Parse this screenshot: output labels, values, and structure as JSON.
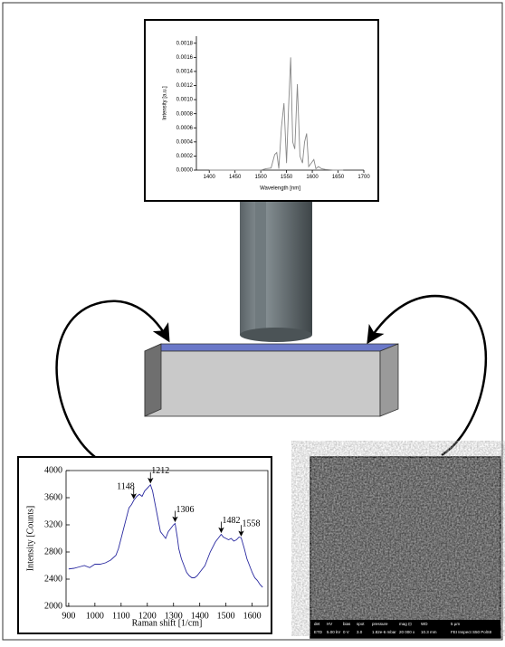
{
  "chart_data": [
    {
      "type": "line",
      "y_label": "Intensity [a.u.]",
      "x_label": "Wavelength [nm]",
      "xlim": [
        1375,
        1700
      ],
      "ylim": [
        0,
        0.0019
      ],
      "xticks": [
        1400,
        1450,
        1500,
        1550,
        1600,
        1650,
        1700
      ],
      "yticks": [
        {
          "value": 0,
          "label": "0.0000"
        },
        0.0002,
        0.0004,
        0.0006,
        0.0008,
        {
          "value": 0.001,
          "label": "0.0010"
        },
        0.0012,
        0.0014,
        0.0016,
        0.0018
      ],
      "series": [
        {
          "color": "#888888",
          "x": [
            1400,
            1500,
            1510,
            1520,
            1527,
            1531,
            1535,
            1540,
            1545,
            1550,
            1554,
            1558,
            1562,
            1566,
            1571,
            1576,
            1581,
            1585,
            1589,
            1593,
            1598,
            1603,
            1607,
            1612,
            1618,
            1625,
            1640,
            1660
          ],
          "values": [
            0,
            0,
            2e-05,
            3e-05,
            0.00022,
            0.00025,
            2e-05,
            0.0006,
            0.00095,
            0.0001,
            0.0009,
            0.0016,
            0.0004,
            0.0003,
            0.00122,
            0.0002,
            0.0001,
            0.0004,
            0.00052,
            5e-05,
            0.0001,
            0.00015,
            2e-05,
            5e-05,
            2e-05,
            1e-05,
            0,
            0
          ]
        }
      ]
    },
    {
      "type": "line",
      "y_label": "Intensity [Counts]",
      "x_label": "Raman shift [1/cm]",
      "xlim": [
        890,
        1660
      ],
      "ylim": [
        2000,
        4000
      ],
      "xticks": [
        900,
        1000,
        1100,
        1200,
        1300,
        1400,
        1500,
        1600
      ],
      "yticks": [
        2000,
        2400,
        2800,
        3200,
        3600,
        4000
      ],
      "series": [
        {
          "color": "#2a2aa0",
          "x": [
            900,
            920,
            940,
            960,
            980,
            1000,
            1020,
            1040,
            1060,
            1080,
            1090,
            1100,
            1110,
            1120,
            1130,
            1140,
            1148,
            1160,
            1170,
            1180,
            1190,
            1200,
            1212,
            1220,
            1230,
            1240,
            1250,
            1260,
            1270,
            1280,
            1290,
            1300,
            1306,
            1315,
            1320,
            1330,
            1340,
            1350,
            1360,
            1370,
            1380,
            1390,
            1400,
            1420,
            1440,
            1460,
            1470,
            1482,
            1490,
            1500,
            1510,
            1520,
            1530,
            1540,
            1550,
            1558,
            1570,
            1580,
            1590,
            1600,
            1610,
            1620,
            1630,
            1640
          ],
          "values": [
            2550,
            2560,
            2580,
            2600,
            2570,
            2620,
            2620,
            2640,
            2680,
            2750,
            2850,
            3000,
            3150,
            3300,
            3450,
            3500,
            3560,
            3620,
            3650,
            3620,
            3700,
            3740,
            3790,
            3700,
            3500,
            3300,
            3100,
            3050,
            3000,
            3100,
            3150,
            3200,
            3220,
            3000,
            2850,
            2700,
            2600,
            2500,
            2450,
            2420,
            2420,
            2450,
            2500,
            2600,
            2800,
            2950,
            3000,
            3060,
            3020,
            3000,
            2980,
            3000,
            2960,
            2980,
            3020,
            3010,
            2850,
            2700,
            2600,
            2500,
            2420,
            2380,
            2320,
            2280
          ]
        }
      ],
      "annotations": [
        {
          "x": 1148,
          "y": 3560,
          "label": "1148"
        },
        {
          "x": 1212,
          "y": 3790,
          "label": "1212"
        },
        {
          "x": 1306,
          "y": 3220,
          "label": "1306"
        },
        {
          "x": 1482,
          "y": 3060,
          "label": "1482"
        },
        {
          "x": 1558,
          "y": 3010,
          "label": "1558"
        }
      ]
    }
  ],
  "sem_image": {
    "labels": [
      "det",
      "HV",
      "bias",
      "spot",
      "pressure",
      "mag ⊡",
      "WD",
      "5 µm"
    ],
    "values": [
      "ETD",
      "5.00 kV",
      "0 V",
      "3.0",
      "1.82e-6 mbar",
      "20 000 x",
      "10.3 mm",
      "FEI Inspect S50 PolSII"
    ]
  }
}
